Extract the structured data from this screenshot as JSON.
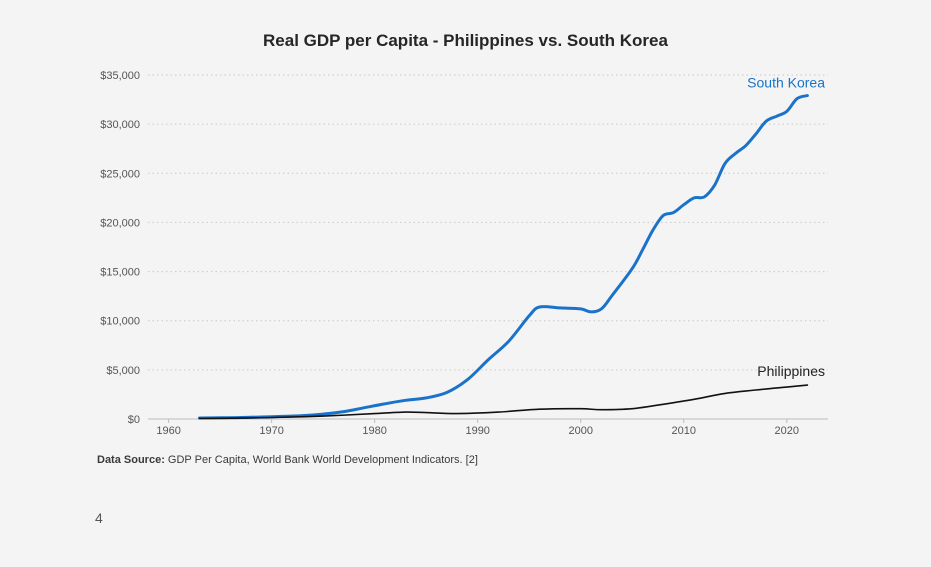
{
  "page_number": "4",
  "source": {
    "label": "Data Source:",
    "text": " GDP Per Capita, World Bank World Development Indicators. [2]"
  },
  "chart_data": {
    "type": "line",
    "title": "Real GDP per Capita - Philippines vs. South Korea",
    "xlabel": "",
    "ylabel": "",
    "xlim": [
      1958,
      2024
    ],
    "ylim": [
      0,
      35000
    ],
    "x_ticks": [
      1960,
      1970,
      1980,
      1990,
      2000,
      2010,
      2020
    ],
    "y_ticks": [
      0,
      5000,
      10000,
      15000,
      20000,
      25000,
      30000,
      35000
    ],
    "y_tick_labels": [
      "$0",
      "$5,000",
      "$10,000",
      "$15,000",
      "$20,000",
      "$25,000",
      "$30,000",
      "$35,000"
    ],
    "grid": true,
    "series": [
      {
        "name": "South Korea",
        "color": "#1a73c8",
        "x": [
          1963,
          1965,
          1967,
          1969,
          1971,
          1973,
          1975,
          1977,
          1979,
          1981,
          1983,
          1985,
          1987,
          1989,
          1991,
          1993,
          1995,
          1996,
          1998,
          2000,
          2001,
          2002,
          2003,
          2005,
          2006,
          2007,
          2008,
          2009,
          2010,
          2011,
          2012,
          2013,
          2014,
          2015,
          2016,
          2017,
          2018,
          2019,
          2020,
          2021,
          2022
        ],
        "values": [
          100,
          120,
          150,
          200,
          260,
          350,
          500,
          750,
          1150,
          1550,
          1900,
          2150,
          2700,
          4000,
          6000,
          7900,
          10500,
          11400,
          11300,
          11200,
          10900,
          11200,
          12500,
          15300,
          17200,
          19200,
          20700,
          21000,
          21800,
          22500,
          22600,
          23800,
          26000,
          27000,
          27800,
          29000,
          30300,
          30800,
          31300,
          32600,
          32900
        ]
      },
      {
        "name": "Philippines",
        "color": "#111111",
        "x": [
          1963,
          1966,
          1970,
          1975,
          1980,
          1983,
          1985,
          1988,
          1992,
          1996,
          2000,
          2002,
          2005,
          2008,
          2011,
          2014,
          2017,
          2020,
          2022
        ],
        "values": [
          50,
          80,
          150,
          300,
          550,
          700,
          650,
          550,
          700,
          1000,
          1050,
          950,
          1050,
          1500,
          2000,
          2600,
          2950,
          3250,
          3450
        ]
      }
    ]
  }
}
